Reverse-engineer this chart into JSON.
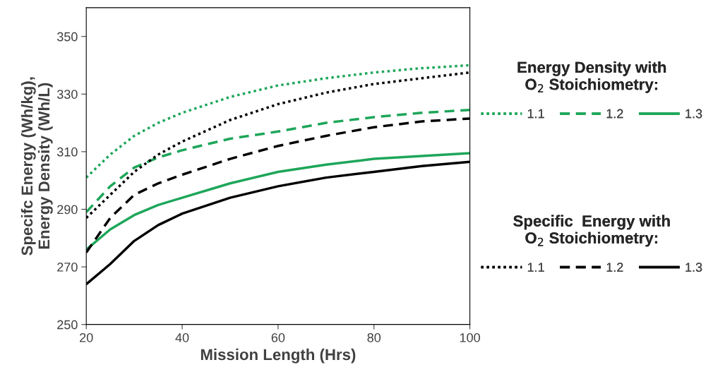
{
  "chart_data": {
    "type": "line",
    "xlabel": "Mission Length (Hrs)",
    "ylabel": "Specifc Energy (Wh/kg),\nEnergy Density (Wh/L)",
    "legend_title": [
      "Energy Density with\nO$_{2}$ Stoichiometry:",
      "Specific  Energy with\nO$_{2}$ Stoichiometry:"
    ],
    "legend": "right",
    "grid": false,
    "marker": "none",
    "x": [
      20,
      25,
      30,
      35,
      40,
      50,
      60,
      70,
      80,
      90,
      100
    ],
    "xlim": [
      20,
      100
    ],
    "xticks": [
      20,
      40,
      60,
      80,
      100
    ],
    "ylim": [
      250,
      360
    ],
    "yticks": [
      250,
      270,
      290,
      310,
      330,
      350
    ],
    "series": [
      {
        "name": "1.1",
        "color": "#1ea65a",
        "line_style": "dotted",
        "values": [
          301,
          309,
          315.5,
          320,
          323.5,
          329,
          333,
          335.5,
          337.5,
          339,
          340
        ]
      },
      {
        "name": "1.2",
        "color": "#1ea65a",
        "line_style": "dashed",
        "values": [
          289,
          298,
          304.5,
          308,
          310.5,
          314.5,
          317,
          320,
          322,
          323.5,
          324.5
        ]
      },
      {
        "name": "1.3",
        "color": "#1ea65a",
        "line_style": "solid",
        "values": [
          276,
          283,
          288,
          291.5,
          294,
          299,
          303,
          305.5,
          307.5,
          308.5,
          309.5
        ]
      },
      {
        "name": "1.1",
        "color": "#000000",
        "line_style": "dotted",
        "values": [
          287,
          295,
          303,
          309,
          313.5,
          321,
          326.5,
          330.5,
          333.5,
          335.5,
          337.5
        ]
      },
      {
        "name": "1.2",
        "color": "#000000",
        "line_style": "dashed",
        "values": [
          275,
          287,
          295,
          299,
          302,
          307.5,
          312,
          315.5,
          318.5,
          320.5,
          321.5
        ]
      },
      {
        "name": "1.3",
        "color": "#000000",
        "line_style": "solid",
        "values": [
          264,
          271,
          279,
          284.5,
          288.5,
          294,
          298,
          301,
          303,
          305,
          306.5
        ]
      }
    ]
  }
}
